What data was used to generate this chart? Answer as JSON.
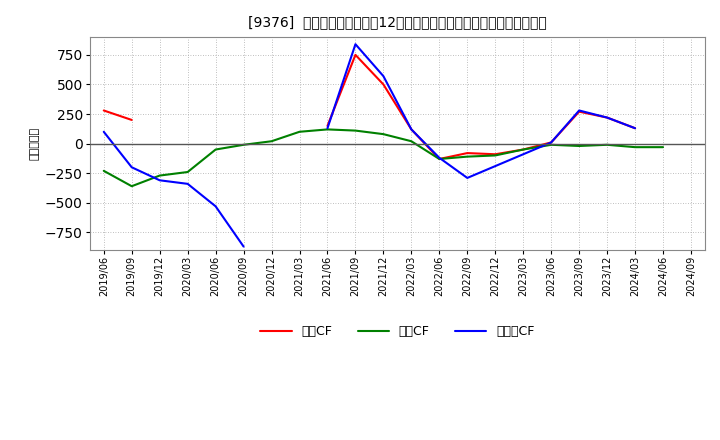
{
  "title": "[9376]  キャッシュフローの12か月移動合計の対前年同期増減額の推移",
  "ylabel": "（百万円）",
  "background_color": "#ffffff",
  "plot_bg_color": "#ffffff",
  "grid_color": "#aaaaaa",
  "x_labels": [
    "2019/06",
    "2019/09",
    "2019/12",
    "2020/03",
    "2020/06",
    "2020/09",
    "2020/12",
    "2021/03",
    "2021/06",
    "2021/09",
    "2021/12",
    "2022/03",
    "2022/06",
    "2022/09",
    "2022/12",
    "2023/03",
    "2023/06",
    "2023/09",
    "2023/12",
    "2024/03",
    "2024/06",
    "2024/09"
  ],
  "operating_cf": [
    280,
    200,
    null,
    null,
    null,
    -870,
    null,
    null,
    150,
    750,
    500,
    120,
    -130,
    -80,
    -90,
    -50,
    10,
    270,
    220,
    130,
    null,
    null
  ],
  "investing_cf": [
    -230,
    -360,
    -270,
    -240,
    -50,
    -10,
    20,
    100,
    120,
    110,
    80,
    20,
    -130,
    -110,
    -100,
    -50,
    -10,
    -20,
    -10,
    -30,
    -30,
    null
  ],
  "free_cf": [
    100,
    -200,
    -310,
    -340,
    -530,
    -870,
    null,
    null,
    130,
    840,
    570,
    120,
    -120,
    -290,
    -190,
    -90,
    10,
    280,
    220,
    130,
    null,
    null
  ],
  "operating_color": "#ff0000",
  "investing_color": "#008000",
  "free_color": "#0000ff",
  "ylim": [
    -900,
    900
  ],
  "yticks": [
    -750,
    -500,
    -250,
    0,
    250,
    500,
    750
  ],
  "legend_labels": [
    "営業CF",
    "投資CF",
    "フリーCF"
  ]
}
